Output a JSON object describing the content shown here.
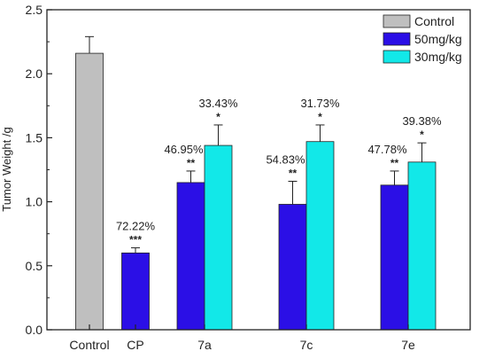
{
  "chart_data": {
    "type": "bar",
    "ylabel": "Tumor Weight /g",
    "ylim": [
      0,
      2.5
    ],
    "yticks": [
      "0.0",
      "0.5",
      "1.0",
      "1.5",
      "2.0",
      "2.5"
    ],
    "categories": [
      "Control",
      "CP",
      "7a",
      "7c",
      "7e"
    ],
    "legend_position": "top-right",
    "series": [
      {
        "name": "Control",
        "color": "#bfbfbf",
        "values": [
          2.16,
          null,
          null,
          null,
          null
        ],
        "errors": [
          0.13,
          null,
          null,
          null,
          null
        ]
      },
      {
        "name": "50mg/kg",
        "color": "#2b0fe6",
        "values": [
          null,
          0.6,
          1.15,
          0.98,
          1.13
        ],
        "errors": [
          null,
          0.04,
          0.09,
          0.18,
          0.11
        ]
      },
      {
        "name": "30mg/kg",
        "color": "#12e8e8",
        "values": [
          null,
          null,
          1.44,
          1.47,
          1.31
        ],
        "errors": [
          null,
          null,
          0.16,
          0.13,
          0.15
        ]
      }
    ],
    "annotations": [
      {
        "category": "CP",
        "series": "50mg/kg",
        "percent": "72.22%",
        "sig": "***"
      },
      {
        "category": "7a",
        "series": "50mg/kg",
        "percent": "46.95%",
        "sig": "**"
      },
      {
        "category": "7a",
        "series": "30mg/kg",
        "percent": "33.43%",
        "sig": "*"
      },
      {
        "category": "7c",
        "series": "50mg/kg",
        "percent": "54.83%",
        "sig": "**"
      },
      {
        "category": "7c",
        "series": "30mg/kg",
        "percent": "31.73%",
        "sig": "*"
      },
      {
        "category": "7e",
        "series": "50mg/kg",
        "percent": "47.78%",
        "sig": "**"
      },
      {
        "category": "7e",
        "series": "30mg/kg",
        "percent": "39.38%",
        "sig": "*"
      }
    ]
  }
}
